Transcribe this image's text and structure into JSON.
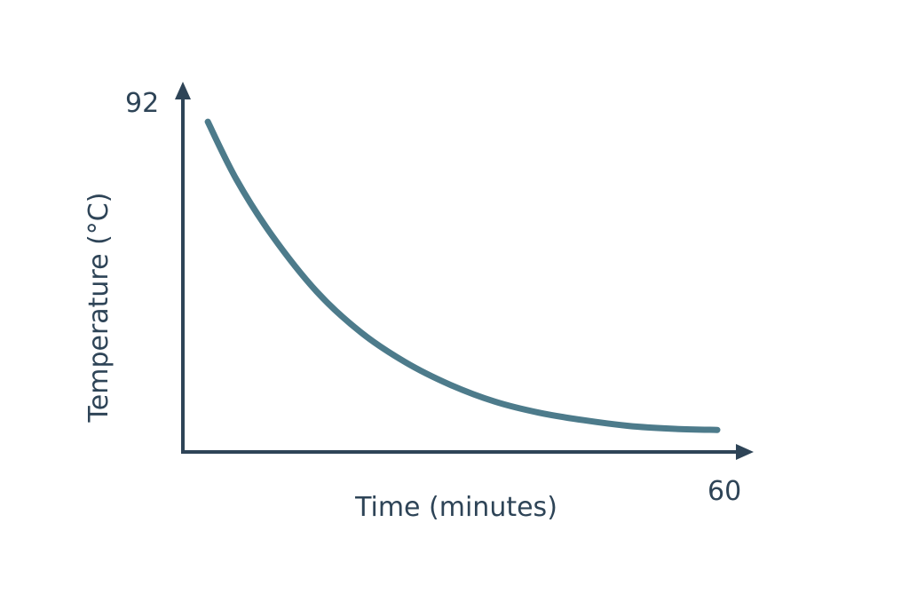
{
  "chart_data": {
    "type": "line",
    "title": "",
    "xlabel": "Time (minutes)",
    "ylabel": "Temperature (°C)",
    "xlim": [
      0,
      60
    ],
    "ylim": [
      0,
      92
    ],
    "x_tick_labels": [
      "60"
    ],
    "y_tick_labels": [
      "92"
    ],
    "grid": false,
    "legend": "none",
    "series": [
      {
        "x": [
          2.8,
          6,
          10,
          15,
          20,
          25,
          30,
          35,
          40,
          45,
          50,
          55,
          60
        ],
        "y": [
          88.4,
          73,
          58,
          43,
          32,
          24,
          18,
          13.5,
          10.5,
          8.5,
          7,
          6.2,
          5.9
        ]
      }
    ]
  },
  "colors": {
    "axis": "#2e4457",
    "line": "#4d7b8b",
    "text": "#2e4457"
  }
}
